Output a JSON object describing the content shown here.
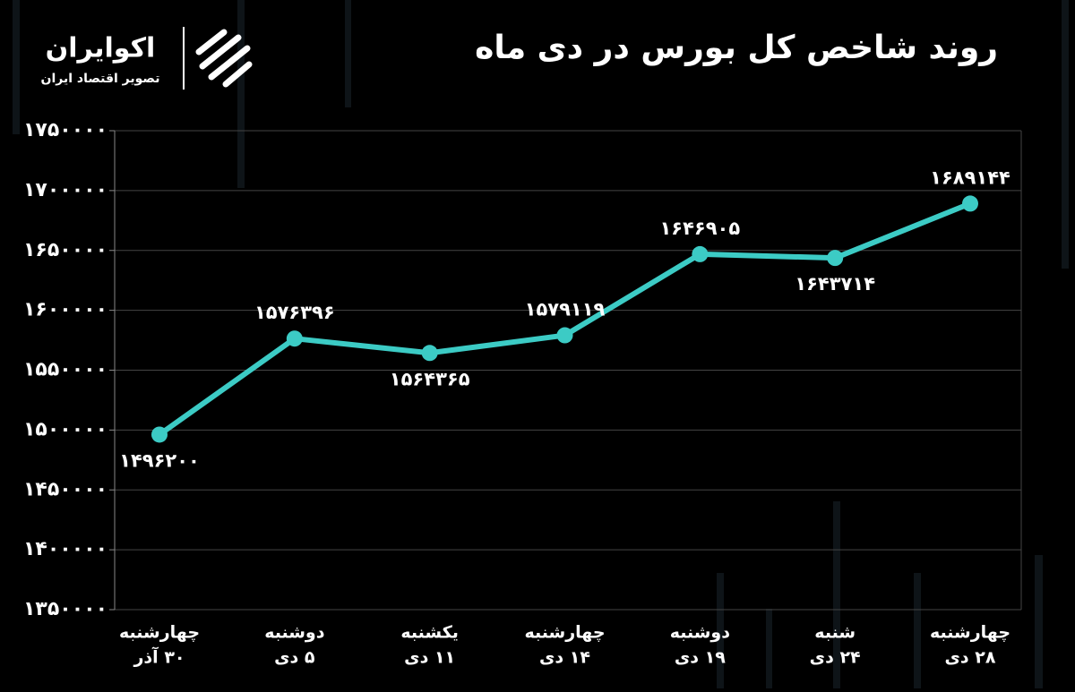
{
  "chart_data": {
    "type": "line",
    "title": "روند شاخص کل بورس در دی ماه",
    "categories": [
      [
        "چهارشنبه",
        "۳۰ آذر"
      ],
      [
        "دوشنبه",
        "۵ دی"
      ],
      [
        "یکشنبه",
        "۱۱ دی"
      ],
      [
        "چهارشنبه",
        "۱۴ دی"
      ],
      [
        "دوشنبه",
        "۱۹ دی"
      ],
      [
        "شنبه",
        "۲۴ دی"
      ],
      [
        "چهارشنبه",
        "۲۸ دی"
      ]
    ],
    "values": [
      1496200,
      1576396,
      1564365,
      1579119,
      1646905,
      1643714,
      1689144
    ],
    "value_labels": [
      "۱۴۹۶۲۰۰",
      "۱۵۷۶۳۹۶",
      "۱۵۶۴۳۶۵",
      "۱۵۷۹۱۱۹",
      "۱۶۴۶۹۰۵",
      "۱۶۴۳۷۱۴",
      "۱۶۸۹۱۴۴"
    ],
    "color": "#3ccbc5",
    "ylim": [
      1350000,
      1750000
    ],
    "yticks": [
      {
        "value": 1350000,
        "label": "۱۳۵۰۰۰۰"
      },
      {
        "value": 1400000,
        "label": "۱۴۰۰۰۰۰"
      },
      {
        "value": 1450000,
        "label": "۱۴۵۰۰۰۰"
      },
      {
        "value": 1500000,
        "label": "۱۵۰۰۰۰۰"
      },
      {
        "value": 1550000,
        "label": "۱۵۵۰۰۰۰"
      },
      {
        "value": 1600000,
        "label": "۱۶۰۰۰۰۰"
      },
      {
        "value": 1650000,
        "label": "۱۶۵۰۰۰۰"
      },
      {
        "value": 1700000,
        "label": "۱۷۰۰۰۰۰"
      },
      {
        "value": 1750000,
        "label": "۱۷۵۰۰۰۰"
      }
    ],
    "grid": true
  },
  "brand": {
    "name": "اکوایران",
    "tagline": "تصویر اقتصاد ایران"
  }
}
